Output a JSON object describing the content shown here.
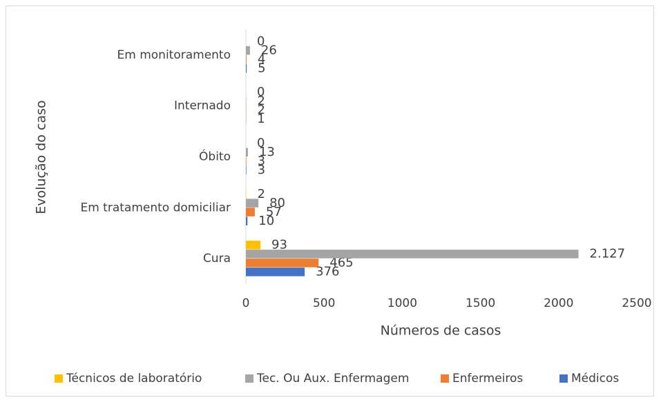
{
  "chart_data": {
    "type": "bar",
    "orientation": "horizontal",
    "categories": [
      "Cura",
      "Em tratamento domiciliar",
      "Óbito",
      "Internado",
      "Em monitoramento"
    ],
    "series": [
      {
        "name": "Médicos",
        "color": "#4472c4",
        "values": [
          376,
          10,
          3,
          1,
          5
        ]
      },
      {
        "name": "Enfermeiros",
        "color": "#ed7d31",
        "values": [
          465,
          57,
          3,
          2,
          4
        ]
      },
      {
        "name": "Tec. Ou Aux. Enfermagem",
        "color": "#a5a5a5",
        "values": [
          2127,
          80,
          13,
          2,
          26
        ],
        "value_labels": [
          "2.127",
          "80",
          "13",
          "2",
          "26"
        ]
      },
      {
        "name": "Técnicos de laboratório",
        "color": "#ffc000",
        "values": [
          93,
          2,
          0,
          0,
          0
        ]
      }
    ],
    "xlim": [
      0,
      2500
    ],
    "xticks": [
      0,
      500,
      1000,
      1500,
      2000,
      2500
    ],
    "xlabel": "Números de casos",
    "ylabel": "Evolução do caso",
    "legend": "bottom",
    "grid": false
  }
}
